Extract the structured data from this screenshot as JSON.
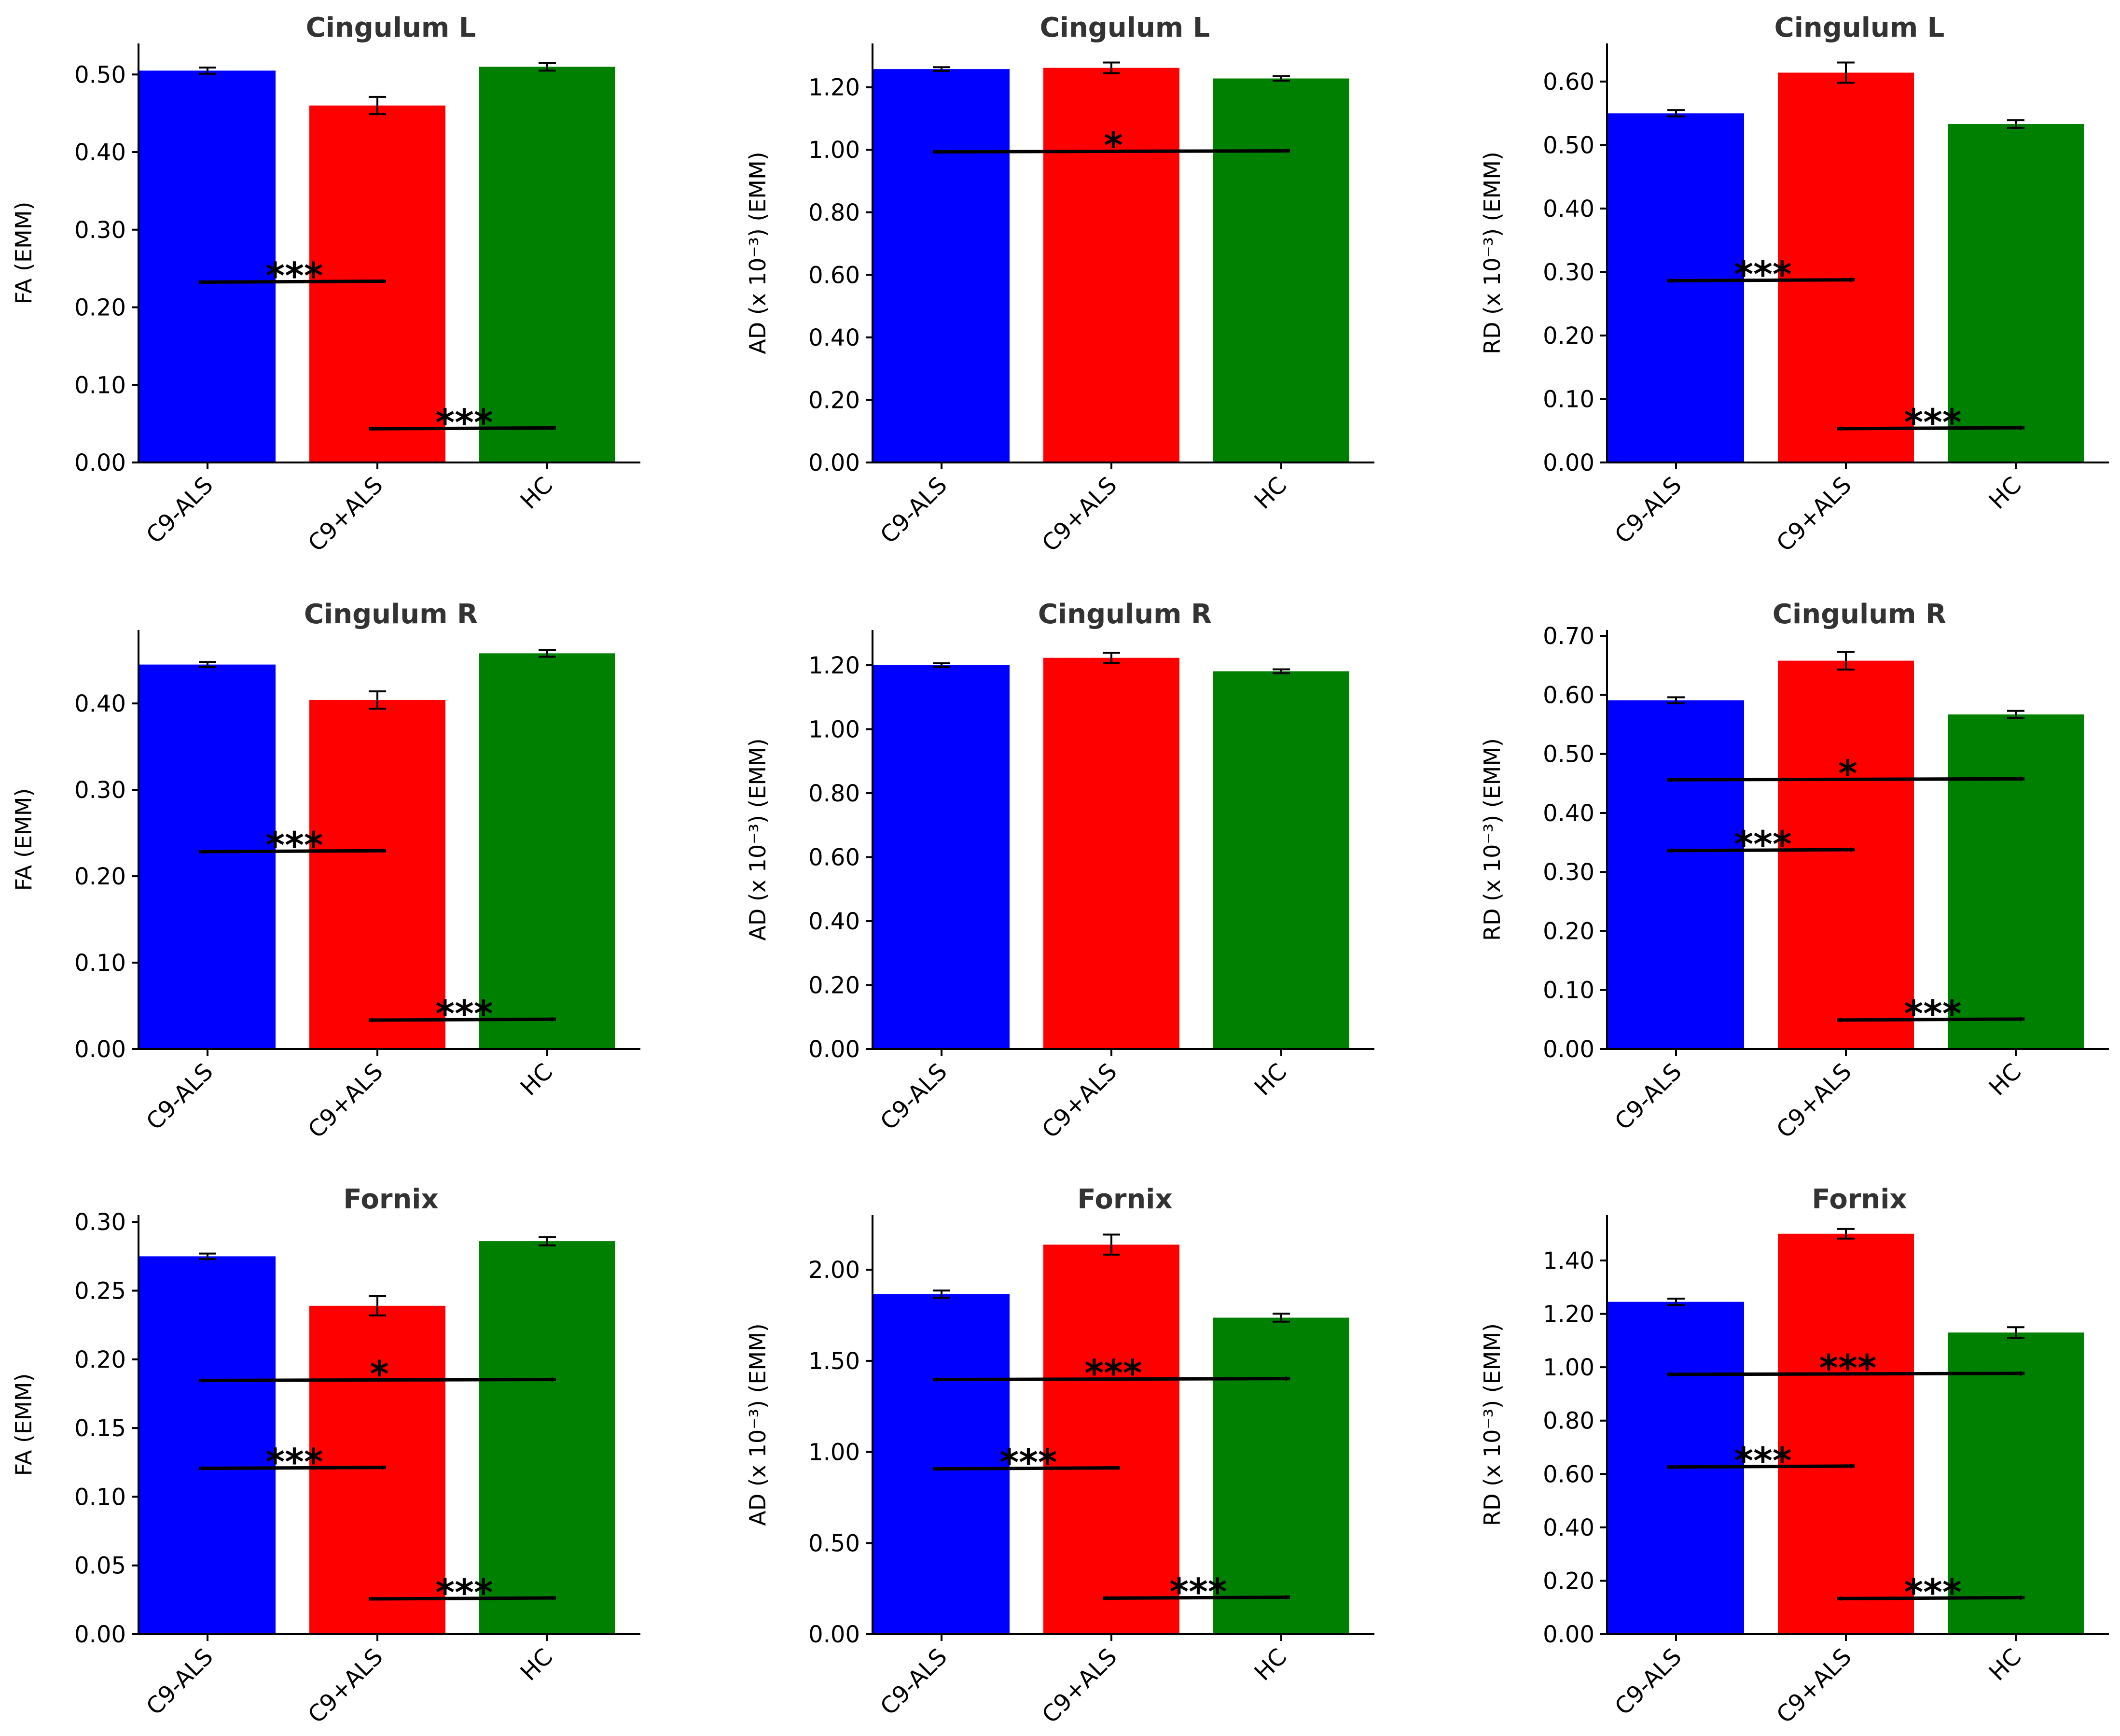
{
  "figure": {
    "categories": [
      "C9-ALS",
      "C9+ALS",
      "HC"
    ],
    "colors": {
      "C9-ALS": "#0000ff",
      "C9+ALS": "#ff0000",
      "HC": "#008000"
    }
  },
  "chart_data": [
    {
      "type": "bar",
      "title": "Cingulum L",
      "ylabel": "FA (EMM)",
      "ylim": [
        0,
        0.54
      ],
      "yticks": [
        "0.00",
        "0.10",
        "0.20",
        "0.30",
        "0.40",
        "0.50"
      ],
      "categories": [
        "C9-ALS",
        "C9+ALS",
        "HC"
      ],
      "values": [
        0.505,
        0.46,
        0.51
      ],
      "errors": [
        0.004,
        0.011,
        0.005
      ],
      "comparisons": [
        {
          "from": "C9-ALS",
          "to": "C9+ALS",
          "y": 0.233,
          "label": "***"
        },
        {
          "from": "C9+ALS",
          "to": "HC",
          "y": 0.044,
          "label": "***"
        }
      ]
    },
    {
      "type": "bar",
      "title": "Cingulum L",
      "ylabel": "AD (x 10⁻³) (EMM)",
      "ylim": [
        0,
        1.34
      ],
      "yticks": [
        "0.00",
        "0.20",
        "0.40",
        "0.60",
        "0.80",
        "1.00",
        "1.20"
      ],
      "categories": [
        "C9-ALS",
        "C9+ALS",
        "HC"
      ],
      "values": [
        1.258,
        1.262,
        1.228
      ],
      "errors": [
        0.006,
        0.017,
        0.007
      ],
      "comparisons": [
        {
          "from": "C9-ALS",
          "to": "HC",
          "y": 0.995,
          "label": "*"
        }
      ]
    },
    {
      "type": "bar",
      "title": "Cingulum L",
      "ylabel": "RD (x 10⁻³) (EMM)",
      "ylim": [
        0,
        0.66
      ],
      "yticks": [
        "0.00",
        "0.10",
        "0.20",
        "0.30",
        "0.40",
        "0.50",
        "0.60"
      ],
      "categories": [
        "C9-ALS",
        "C9+ALS",
        "HC"
      ],
      "values": [
        0.55,
        0.614,
        0.533
      ],
      "errors": [
        0.005,
        0.016,
        0.006
      ],
      "comparisons": [
        {
          "from": "C9-ALS",
          "to": "C9+ALS",
          "y": 0.287,
          "label": "***"
        },
        {
          "from": "C9+ALS",
          "to": "HC",
          "y": 0.054,
          "label": "***"
        }
      ]
    },
    {
      "type": "bar",
      "title": "Cingulum R",
      "ylabel": "FA (EMM)",
      "ylim": [
        0,
        0.485
      ],
      "yticks": [
        "0.00",
        "0.10",
        "0.20",
        "0.30",
        "0.40"
      ],
      "categories": [
        "C9-ALS",
        "C9+ALS",
        "HC"
      ],
      "values": [
        0.445,
        0.404,
        0.458
      ],
      "errors": [
        0.003,
        0.01,
        0.004
      ],
      "comparisons": [
        {
          "from": "C9-ALS",
          "to": "C9+ALS",
          "y": 0.229,
          "label": "***"
        },
        {
          "from": "C9+ALS",
          "to": "HC",
          "y": 0.034,
          "label": "***"
        }
      ]
    },
    {
      "type": "bar",
      "title": "Cingulum R",
      "ylabel": "AD (x 10⁻³) (EMM)",
      "ylim": [
        0,
        1.31
      ],
      "yticks": [
        "0.00",
        "0.20",
        "0.40",
        "0.60",
        "0.80",
        "1.00",
        "1.20"
      ],
      "categories": [
        "C9-ALS",
        "C9+ALS",
        "HC"
      ],
      "values": [
        1.2,
        1.223,
        1.181
      ],
      "errors": [
        0.006,
        0.016,
        0.006
      ],
      "comparisons": []
    },
    {
      "type": "bar",
      "title": "Cingulum R",
      "ylabel": "RD (x 10⁻³) (EMM)",
      "ylim": [
        0,
        0.71
      ],
      "yticks": [
        "0.00",
        "0.10",
        "0.20",
        "0.30",
        "0.40",
        "0.50",
        "0.60",
        "0.70"
      ],
      "categories": [
        "C9-ALS",
        "C9+ALS",
        "HC"
      ],
      "values": [
        0.591,
        0.658,
        0.567
      ],
      "errors": [
        0.005,
        0.015,
        0.006
      ],
      "comparisons": [
        {
          "from": "C9-ALS",
          "to": "HC",
          "y": 0.457,
          "label": "*"
        },
        {
          "from": "C9-ALS",
          "to": "C9+ALS",
          "y": 0.337,
          "label": "***"
        },
        {
          "from": "C9+ALS",
          "to": "HC",
          "y": 0.05,
          "label": "***"
        }
      ]
    },
    {
      "type": "bar",
      "title": "Fornix",
      "ylabel": "FA (EMM)",
      "ylim": [
        0,
        0.305
      ],
      "yticks": [
        "0.00",
        "0.05",
        "0.10",
        "0.15",
        "0.20",
        "0.25",
        "0.30"
      ],
      "categories": [
        "C9-ALS",
        "C9+ALS",
        "HC"
      ],
      "values": [
        0.275,
        0.239,
        0.286
      ],
      "errors": [
        0.002,
        0.007,
        0.003
      ],
      "comparisons": [
        {
          "from": "C9-ALS",
          "to": "HC",
          "y": 0.185,
          "label": "*"
        },
        {
          "from": "C9-ALS",
          "to": "C9+ALS",
          "y": 0.121,
          "label": "***"
        },
        {
          "from": "C9+ALS",
          "to": "HC",
          "y": 0.026,
          "label": "***"
        }
      ]
    },
    {
      "type": "bar",
      "title": "Fornix",
      "ylabel": "AD (x 10⁻³) (EMM)",
      "ylim": [
        0,
        2.3
      ],
      "yticks": [
        "0.00",
        "0.50",
        "1.00",
        "1.50",
        "2.00"
      ],
      "categories": [
        "C9-ALS",
        "C9+ALS",
        "HC"
      ],
      "values": [
        1.866,
        2.138,
        1.737
      ],
      "errors": [
        0.02,
        0.055,
        0.022
      ],
      "comparisons": [
        {
          "from": "C9-ALS",
          "to": "HC",
          "y": 1.4,
          "label": "***"
        },
        {
          "from": "C9-ALS",
          "to": "C9+ALS",
          "y": 0.91,
          "label": "***"
        },
        {
          "from": "C9+ALS",
          "to": "HC",
          "y": 0.2,
          "label": "***"
        }
      ]
    },
    {
      "type": "bar",
      "title": "Fornix",
      "ylabel": "RD (x 10⁻³) (EMM)",
      "ylim": [
        0,
        1.57
      ],
      "yticks": [
        "0.00",
        "0.20",
        "0.40",
        "0.60",
        "0.80",
        "1.00",
        "1.20",
        "1.40"
      ],
      "categories": [
        "C9-ALS",
        "C9+ALS",
        "HC"
      ],
      "values": [
        1.245,
        1.5,
        1.13
      ],
      "errors": [
        0.012,
        0.018,
        0.02
      ],
      "comparisons": [
        {
          "from": "C9-ALS",
          "to": "HC",
          "y": 0.975,
          "label": "***"
        },
        {
          "from": "C9-ALS",
          "to": "C9+ALS",
          "y": 0.628,
          "label": "***"
        },
        {
          "from": "C9+ALS",
          "to": "HC",
          "y": 0.135,
          "label": "***"
        }
      ]
    }
  ]
}
